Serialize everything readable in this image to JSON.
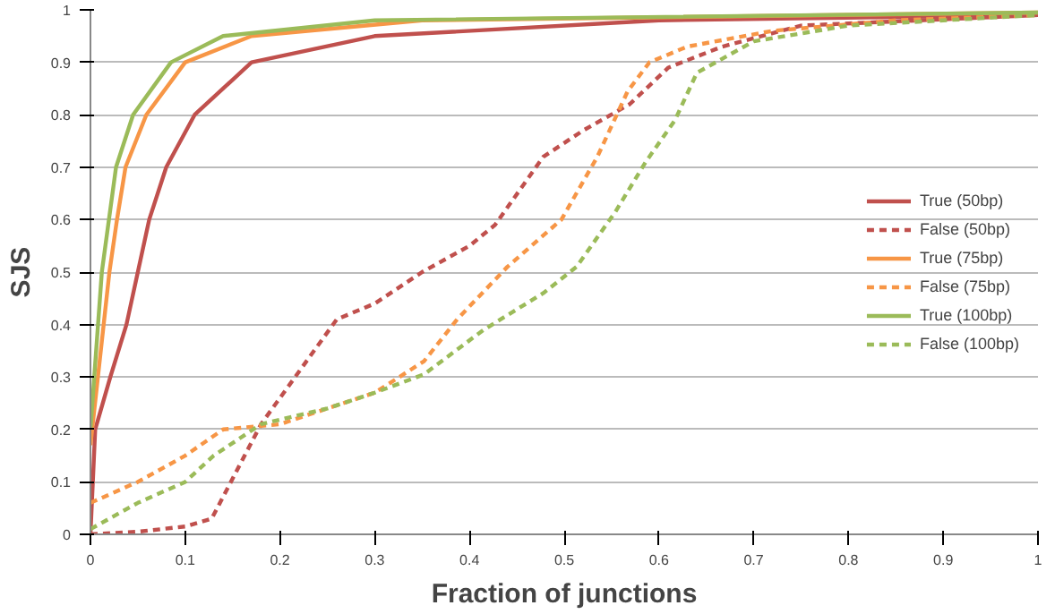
{
  "chart_data": {
    "type": "line",
    "xlabel": "Fraction of junctions",
    "ylabel": "SJS",
    "xlim": [
      0,
      1
    ],
    "ylim": [
      0,
      1
    ],
    "xticks": [
      0,
      0.1,
      0.2,
      0.3,
      0.4,
      0.5,
      0.6,
      0.7,
      0.8,
      0.9,
      1
    ],
    "yticks": [
      0,
      0.1,
      0.2,
      0.3,
      0.4,
      0.5,
      0.6,
      0.7,
      0.8,
      0.9,
      1
    ],
    "grid": "y",
    "legend": "right",
    "marker": "none",
    "series": [
      {
        "name": "True (50bp)",
        "color": "#c0504d",
        "line_style": "solid",
        "x": [
          0,
          0.005,
          0.021,
          0.038,
          0.05,
          0.062,
          0.08,
          0.11,
          0.17,
          0.3,
          0.6,
          1
        ],
        "values": [
          0,
          0.2,
          0.3,
          0.4,
          0.5,
          0.6,
          0.7,
          0.8,
          0.9,
          0.95,
          0.98,
          0.99
        ]
      },
      {
        "name": "False (50bp)",
        "color": "#c0504d",
        "line_style": "dashed",
        "x": [
          0,
          0.05,
          0.1,
          0.128,
          0.18,
          0.26,
          0.3,
          0.35,
          0.4,
          0.427,
          0.478,
          0.52,
          0.569,
          0.61,
          0.667,
          0.75,
          1
        ],
        "values": [
          0,
          0.005,
          0.015,
          0.03,
          0.21,
          0.41,
          0.44,
          0.5,
          0.55,
          0.59,
          0.72,
          0.77,
          0.82,
          0.89,
          0.93,
          0.97,
          0.99
        ]
      },
      {
        "name": "True (75bp)",
        "color": "#f79646",
        "line_style": "solid",
        "x": [
          0,
          0.02,
          0.028,
          0.037,
          0.059,
          0.1,
          0.17,
          0.35,
          1
        ],
        "values": [
          0.17,
          0.5,
          0.6,
          0.7,
          0.8,
          0.9,
          0.95,
          0.98,
          0.995
        ]
      },
      {
        "name": "False (75bp)",
        "color": "#f79646",
        "line_style": "dashed",
        "x": [
          0,
          0.05,
          0.1,
          0.14,
          0.2,
          0.25,
          0.3,
          0.352,
          0.387,
          0.44,
          0.497,
          0.535,
          0.567,
          0.59,
          0.63,
          0.72,
          0.85,
          1
        ],
        "values": [
          0.06,
          0.1,
          0.15,
          0.2,
          0.21,
          0.24,
          0.27,
          0.33,
          0.41,
          0.51,
          0.6,
          0.72,
          0.845,
          0.9,
          0.93,
          0.96,
          0.98,
          0.99
        ]
      },
      {
        "name": "True (100bp)",
        "color": "#9bbb59",
        "line_style": "solid",
        "x": [
          0,
          0.012,
          0.027,
          0.045,
          0.085,
          0.14,
          0.3,
          1
        ],
        "values": [
          0.2,
          0.5,
          0.7,
          0.8,
          0.9,
          0.95,
          0.98,
          0.995
        ]
      },
      {
        "name": "False (100bp)",
        "color": "#9bbb59",
        "line_style": "dashed",
        "x": [
          0,
          0.05,
          0.1,
          0.13,
          0.18,
          0.25,
          0.3,
          0.352,
          0.415,
          0.478,
          0.513,
          0.554,
          0.586,
          0.617,
          0.64,
          0.7,
          0.8,
          1
        ],
        "values": [
          0.01,
          0.06,
          0.1,
          0.15,
          0.21,
          0.24,
          0.27,
          0.305,
          0.39,
          0.46,
          0.51,
          0.615,
          0.71,
          0.79,
          0.88,
          0.94,
          0.97,
          0.99
        ]
      }
    ]
  }
}
